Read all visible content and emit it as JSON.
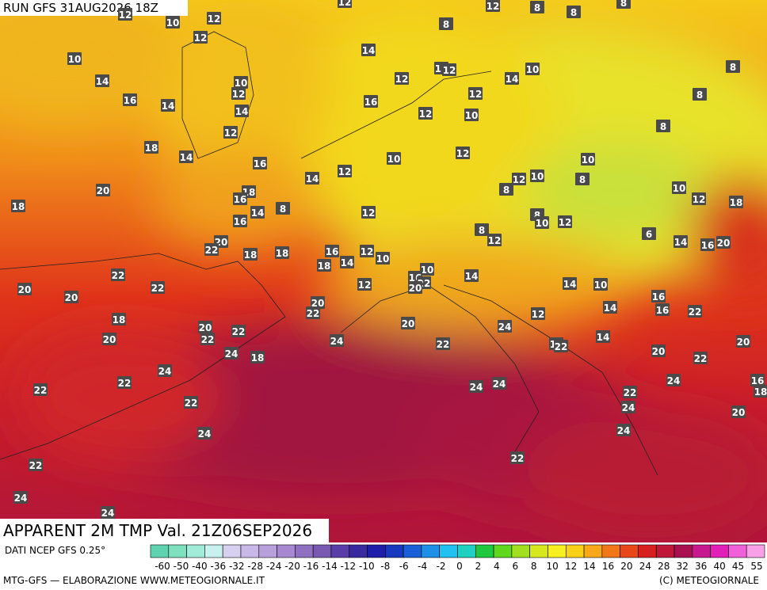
{
  "header": {
    "run": "RUN GFS 31AUG2026 18Z"
  },
  "footer": {
    "title": "APPARENT 2M TMP Val. 21Z06SEP2026",
    "source": "DATI NCEP GFS 0.25°",
    "credit": "MTG-GFS — ELABORAZIONE WWW.METEOGIORNALE.IT",
    "copyright": "(C) METEOGIORNALE"
  },
  "legend": {
    "ticks": [
      -60,
      -50,
      -40,
      -36,
      -32,
      -28,
      -24,
      -20,
      -16,
      -14,
      -12,
      -10,
      -8,
      -6,
      -4,
      -2,
      0,
      2,
      4,
      6,
      8,
      10,
      12,
      14,
      16,
      20,
      24,
      28,
      32,
      36,
      40,
      45,
      55
    ]
  },
  "map": {
    "labels": [
      12,
      10,
      12,
      12,
      12,
      12,
      8,
      8,
      8,
      8,
      10,
      14,
      14,
      10,
      12,
      12,
      11,
      12,
      14,
      10,
      8,
      16,
      14,
      14,
      16,
      12,
      8,
      12,
      10,
      8,
      12,
      18,
      14,
      16,
      10,
      12,
      10,
      12,
      14,
      12,
      10,
      8,
      20,
      18,
      8,
      10,
      18,
      16,
      14,
      8,
      12,
      12,
      18,
      8,
      10,
      12,
      16,
      8,
      6,
      12,
      20,
      22,
      18,
      18,
      16,
      14,
      12,
      10,
      14,
      16,
      20,
      18,
      10,
      22,
      22,
      20,
      12,
      16,
      22,
      20,
      14,
      14,
      10,
      20,
      20,
      22,
      16,
      14,
      16,
      18,
      22,
      20,
      24,
      20,
      22,
      12,
      20,
      22,
      24,
      22,
      12,
      22,
      14,
      20,
      24,
      18,
      20,
      22,
      24,
      22,
      22,
      24,
      24,
      24,
      16,
      18,
      22,
      22,
      24,
      20,
      24,
      24,
      22,
      22,
      24,
      24
    ]
  }
}
